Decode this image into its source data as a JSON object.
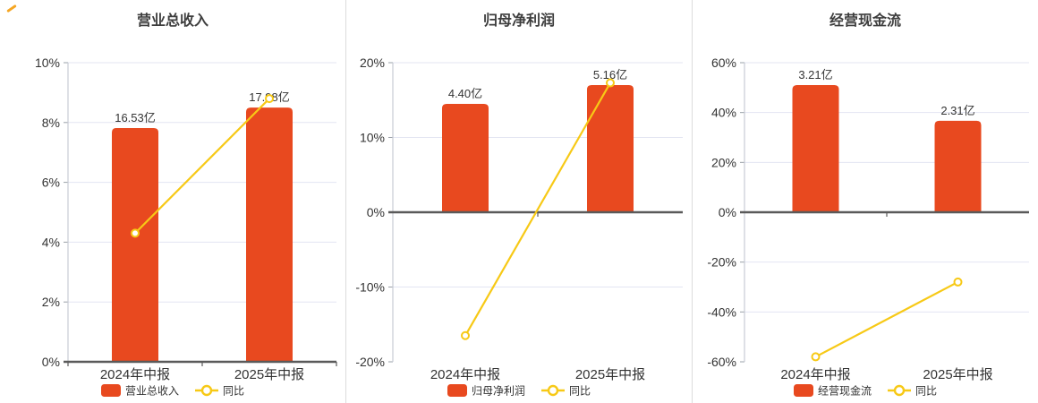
{
  "colors": {
    "bar": "#e8491f",
    "line": "#f7c916",
    "grid": "#e3e5f2",
    "axis": "#c8cbd4",
    "zero_line": "#5a5a5a",
    "tick_mark": "#9aa0a8",
    "text": "#333333",
    "title": "#3d3d3d",
    "divider": "#dcdcdc",
    "corner_dash": "#f5a623",
    "marker_fill": "#ffffff"
  },
  "chart_data": [
    {
      "type": "bar",
      "title": "营业总收入",
      "categories": [
        "2024年中报",
        "2025年中报"
      ],
      "series": [
        {
          "name": "营业总收入",
          "type": "bar",
          "unit": "亿",
          "values": [
            16.53,
            17.98
          ],
          "labels": [
            "16.53亿",
            "17.98亿"
          ]
        },
        {
          "name": "同比",
          "type": "line",
          "unit": "%",
          "values": [
            4.3,
            8.8
          ]
        }
      ],
      "y_axis": {
        "min": 0,
        "max": 10,
        "ticks": [
          10,
          8,
          6,
          4,
          2,
          0
        ],
        "tick_labels": [
          "10%",
          "8%",
          "6%",
          "4%",
          "2%",
          "0%"
        ]
      },
      "legend": [
        "营业总收入",
        "同比"
      ],
      "layout": {
        "plot_left": 76,
        "bar_scale_max_fraction": 0.85,
        "legend_position": "bottom-center",
        "grid": true
      }
    },
    {
      "type": "bar",
      "title": "归母净利润",
      "categories": [
        "2024年中报",
        "2025年中报"
      ],
      "series": [
        {
          "name": "归母净利润",
          "type": "bar",
          "unit": "亿",
          "values": [
            4.4,
            5.16
          ],
          "labels": [
            "4.40亿",
            "5.16亿"
          ]
        },
        {
          "name": "同比",
          "type": "line",
          "unit": "%",
          "values": [
            -16.5,
            17.3
          ]
        }
      ],
      "y_axis": {
        "min": -20,
        "max": 20,
        "ticks": [
          20,
          10,
          0,
          -10,
          -20
        ],
        "tick_labels": [
          "20%",
          "10%",
          "0%",
          "-10%",
          "-20%"
        ]
      },
      "legend": [
        "归母净利润",
        "同比"
      ],
      "layout": {
        "plot_left": 52,
        "bar_scale_max_fraction": 0.85,
        "legend_position": "bottom-center",
        "grid": true
      }
    },
    {
      "type": "bar",
      "title": "经营现金流",
      "categories": [
        "2024年中报",
        "2025年中报"
      ],
      "series": [
        {
          "name": "经营现金流",
          "type": "bar",
          "unit": "亿",
          "values": [
            3.21,
            2.31
          ],
          "labels": [
            "3.21亿",
            "2.31亿"
          ]
        },
        {
          "name": "同比",
          "type": "line",
          "unit": "%",
          "values": [
            -58.0,
            -28.0
          ]
        }
      ],
      "y_axis": {
        "min": -60,
        "max": 60,
        "ticks": [
          60,
          40,
          20,
          0,
          -20,
          -40,
          -60
        ],
        "tick_labels": [
          "60%",
          "40%",
          "20%",
          "0%",
          "-20%",
          "-40%",
          "-60%"
        ]
      },
      "legend": [
        "经营现金流",
        "同比"
      ],
      "layout": {
        "plot_left": 58,
        "bar_scale_max_fraction": 0.85,
        "legend_position": "bottom-center",
        "grid": true
      }
    }
  ]
}
